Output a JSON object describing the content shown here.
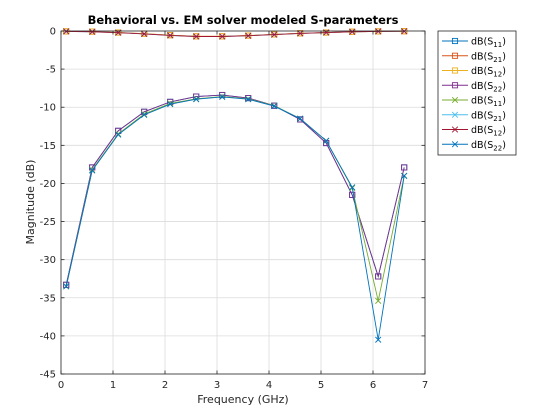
{
  "chart_data": {
    "type": "line",
    "title": "Behavioral vs. EM solver modeled S-parameters",
    "xlabel": "Frequency (GHz)",
    "ylabel": "Magnitude (dB)",
    "xlim": [
      0,
      7
    ],
    "ylim": [
      -45,
      0
    ],
    "xticks": [
      "0",
      "1",
      "2",
      "3",
      "4",
      "5",
      "6",
      "7"
    ],
    "yticks": [
      "0",
      "-5",
      "-10",
      "-15",
      "-20",
      "-25",
      "-30",
      "-35",
      "-40",
      "-45"
    ],
    "grid": true,
    "legend_position": "outside-right",
    "x": [
      0.1,
      0.6,
      1.1,
      1.6,
      2.1,
      2.6,
      3.1,
      3.6,
      4.1,
      4.6,
      5.1,
      5.6,
      6.1,
      6.6
    ],
    "series": [
      {
        "name": "S11",
        "marker": "square",
        "color": "#0072BD",
        "values": [
          -33.3,
          -17.9,
          -13.1,
          -10.6,
          -9.3,
          -8.6,
          -8.4,
          -8.8,
          -9.8,
          -11.6,
          -14.7,
          -21.5,
          -32.2,
          -17.9
        ]
      },
      {
        "name": "S21",
        "marker": "square",
        "color": "#D95319",
        "values": [
          -0.05,
          -0.08,
          -0.2,
          -0.35,
          -0.55,
          -0.7,
          -0.7,
          -0.6,
          -0.45,
          -0.3,
          -0.2,
          -0.1,
          -0.05,
          -0.03
        ]
      },
      {
        "name": "S12",
        "marker": "square",
        "color": "#EDB120",
        "values": [
          -0.05,
          -0.08,
          -0.2,
          -0.35,
          -0.55,
          -0.7,
          -0.7,
          -0.6,
          -0.45,
          -0.3,
          -0.2,
          -0.1,
          -0.05,
          -0.03
        ]
      },
      {
        "name": "S22",
        "marker": "square",
        "color": "#7E2F8E",
        "values": [
          -33.3,
          -17.9,
          -13.1,
          -10.6,
          -9.3,
          -8.6,
          -8.4,
          -8.8,
          -9.8,
          -11.6,
          -14.7,
          -21.5,
          -32.2,
          -17.9
        ]
      },
      {
        "name": "S11",
        "marker": "x",
        "color": "#77AC30",
        "values": [
          -33.5,
          -18.2,
          -13.5,
          -10.9,
          -9.5,
          -8.9,
          -8.6,
          -8.9,
          -9.8,
          -11.5,
          -14.4,
          -20.6,
          -35.4,
          -19.0
        ]
      },
      {
        "name": "S21",
        "marker": "x",
        "color": "#4DBEEE",
        "values": [
          -0.05,
          -0.1,
          -0.22,
          -0.38,
          -0.58,
          -0.72,
          -0.72,
          -0.62,
          -0.47,
          -0.32,
          -0.2,
          -0.1,
          -0.05,
          -0.03
        ]
      },
      {
        "name": "S12",
        "marker": "x",
        "color": "#A2142F",
        "values": [
          -0.05,
          -0.1,
          -0.22,
          -0.38,
          -0.58,
          -0.72,
          -0.72,
          -0.62,
          -0.47,
          -0.32,
          -0.2,
          -0.1,
          -0.05,
          -0.03
        ]
      },
      {
        "name": "S22",
        "marker": "x",
        "color": "#0072BD",
        "values": [
          -33.5,
          -18.3,
          -13.6,
          -11.0,
          -9.6,
          -8.95,
          -8.65,
          -8.95,
          -9.85,
          -11.5,
          -14.4,
          -20.5,
          -40.5,
          -19.0
        ]
      }
    ]
  }
}
